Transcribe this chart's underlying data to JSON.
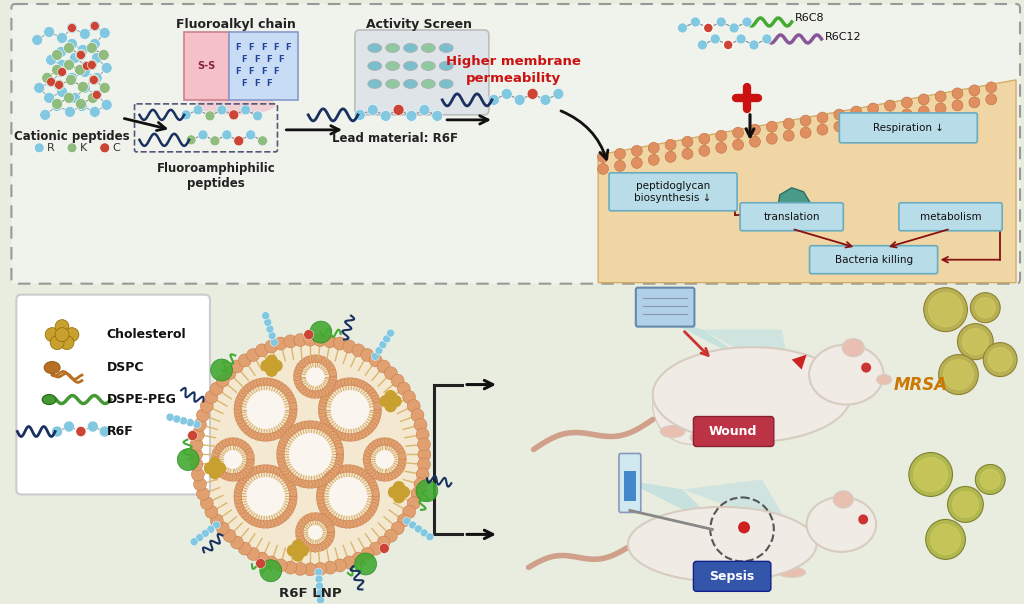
{
  "background_color": "#e8ede0",
  "top_box_bg": "#f0f2ec",
  "top_box_border": "#999999",
  "membrane_fill": "#f0d8a0",
  "box_fill": "#b8dde8",
  "box_border": "#6aacbf",
  "legend_fill": "#ffffff",
  "legend_border": "#cccccc",
  "fluoroalkyl_label": "Fluoroalkyl chain",
  "activity_screen_label": "Activity Screen",
  "higher_membrane_label": "Higher membrane\npermeability",
  "lead_material_label": "Lead material: R6F",
  "cationic_label": "Cationic peptides",
  "fluoroamphiphilic_label": "Fluoroamphiphilic\npeptides",
  "r6c8_label": "R6C8",
  "r6c12_label": "R6C12",
  "respiration_label": "Respiration ↓",
  "peptidoglycan_label": "peptidoglycan\nbiosynthesis ↓",
  "translation_label": "translation",
  "metabolism_label": "metabolism",
  "bacteria_killing_label": "Bacteria killing",
  "cholesterol_label": "Cholesterol",
  "dspc_label": "DSPC",
  "dspepeg_label": "DSPE-PEG",
  "r6f_legend_label": "R6F",
  "r_label": "R",
  "k_label": "K",
  "c_label": "C",
  "r6f_lnp_label": "R6F LNP",
  "mrsa_label": "MRSA",
  "wound_label": "Wound",
  "sepsis_label": "Sepsis",
  "r_color": "#82c8e0",
  "k_color": "#90bc80",
  "c_color": "#cc4433",
  "blue_bead": "#82c8e0",
  "dark_blue": "#1a2f88",
  "dark_navy": "#1a3060",
  "red_cross_color": "#cc1111",
  "dark_red": "#881111",
  "teal_protein": "#4a9a8a",
  "lipid_bead_color": "#e0a070",
  "lipid_tail_color": "#eed0a0",
  "cholesterol_color": "#c8a030",
  "dspc_color": "#b87020",
  "dspepeg_color": "#449933",
  "wound_color": "#bb3344",
  "sepsis_color": "#3355aa",
  "mrsa_color": "#cc7700",
  "higher_membrane_color": "#cc1111",
  "green_chain_color": "#44aa33",
  "purple_chain_color": "#885599",
  "mouse_body": "#f0ebe5",
  "mouse_edge": "#d8ccc0",
  "mouse_ear": "#e8bfb0",
  "tail_color": "#d0a08a",
  "bacteria_fill": "#b8b055",
  "bacteria_edge": "#908030"
}
